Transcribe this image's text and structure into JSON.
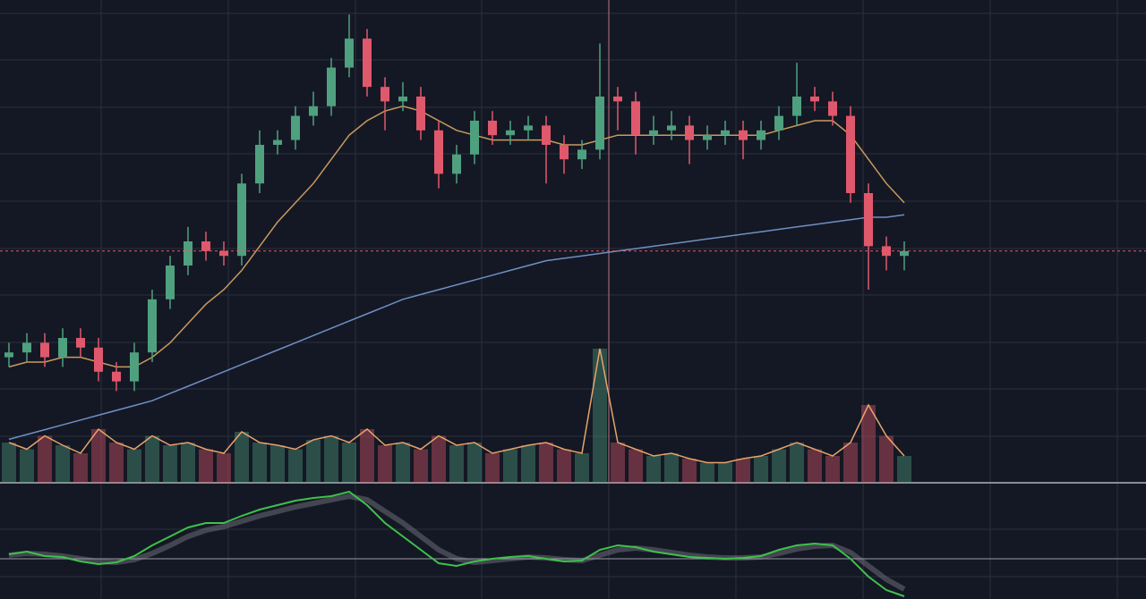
{
  "chart_data": {
    "type": "candlestick",
    "open": [
      26,
      27,
      29,
      26,
      30,
      28,
      23,
      21,
      27,
      38,
      45,
      50,
      48,
      47,
      62,
      70,
      71,
      76,
      78,
      86,
      92,
      82,
      79,
      80,
      73,
      64,
      68,
      75,
      72,
      73,
      74,
      70,
      67,
      69,
      80,
      79,
      72,
      73,
      74,
      71,
      72,
      73,
      71,
      73,
      76,
      80,
      79,
      76,
      60,
      49,
      47
    ],
    "high": [
      29,
      31,
      31,
      32,
      32,
      30,
      25,
      29,
      40,
      47,
      53,
      52,
      50,
      64,
      73,
      73,
      78,
      81,
      88,
      97,
      94,
      84,
      83,
      82,
      75,
      70,
      77,
      77,
      75,
      76,
      76,
      72,
      71,
      91,
      82,
      81,
      76,
      77,
      76,
      74,
      75,
      75,
      75,
      78,
      87,
      82,
      81,
      78,
      62,
      51,
      50
    ],
    "low": [
      24,
      25,
      24,
      24,
      26,
      21,
      19,
      19,
      25,
      36,
      43,
      46,
      45,
      45,
      60,
      68,
      69,
      74,
      76,
      84,
      80,
      73,
      77,
      71,
      61,
      62,
      66,
      70,
      70,
      71,
      62,
      64,
      65,
      67,
      73,
      68,
      70,
      71,
      66,
      69,
      70,
      67,
      69,
      71,
      74,
      77,
      74,
      58,
      40,
      44,
      44
    ],
    "close": [
      27,
      29,
      26,
      30,
      28,
      23,
      21,
      27,
      38,
      45,
      50,
      48,
      47,
      62,
      70,
      71,
      76,
      78,
      86,
      92,
      82,
      79,
      80,
      73,
      64,
      68,
      75,
      72,
      73,
      74,
      70,
      67,
      69,
      80,
      79,
      72,
      73,
      74,
      71,
      72,
      73,
      71,
      73,
      76,
      80,
      79,
      76,
      60,
      49,
      47,
      48
    ],
    "ylim": [
      0,
      100
    ],
    "up_color": "#4fa07f",
    "down_color": "#e0586c",
    "moving_averages": [
      {
        "color": "#6f8fc4",
        "values": [
          9,
          10,
          11,
          12,
          13,
          14,
          15,
          16,
          17,
          18.5,
          20,
          21.5,
          23,
          24.5,
          26,
          27.5,
          29,
          30.5,
          32,
          33.5,
          35,
          36.5,
          38,
          39,
          40,
          41,
          42,
          43,
          44,
          45,
          46,
          46.5,
          47,
          47.5,
          48,
          48.5,
          49,
          49.5,
          50,
          50.5,
          51,
          51.5,
          52,
          52.5,
          53,
          53.5,
          54,
          54.5,
          55,
          55,
          55.5
        ]
      },
      {
        "color": "#c99a5e",
        "values": [
          24,
          25,
          25,
          26,
          26,
          25,
          24,
          24,
          26,
          29,
          33,
          37,
          40,
          44,
          49,
          54,
          58,
          62,
          67,
          72,
          75,
          77,
          78,
          77,
          75,
          73,
          72,
          71,
          71,
          71,
          71,
          70,
          70,
          71,
          72,
          72,
          72,
          72,
          72,
          72,
          72,
          72,
          72,
          73,
          74,
          75,
          75,
          72,
          67,
          62,
          58
        ]
      }
    ],
    "volume": [
      30,
      25,
      35,
      28,
      22,
      40,
      30,
      25,
      35,
      28,
      30,
      25,
      22,
      38,
      30,
      28,
      25,
      32,
      35,
      30,
      40,
      28,
      30,
      25,
      35,
      28,
      30,
      22,
      25,
      28,
      30,
      25,
      22,
      100,
      30,
      25,
      20,
      22,
      18,
      15,
      15,
      18,
      20,
      25,
      30,
      25,
      20,
      30,
      58,
      35,
      20
    ],
    "volume_ylim": [
      0,
      100
    ],
    "macd": {
      "line_color": "#3fc14a",
      "signal_color": "#9a9aa6",
      "ylim": [
        -4.5,
        8
      ],
      "line": [
        0.5,
        0.8,
        0.3,
        0.2,
        -0.3,
        -0.6,
        -0.4,
        0.3,
        1.5,
        2.5,
        3.5,
        4,
        4,
        4.8,
        5.5,
        6,
        6.5,
        6.8,
        7,
        7.5,
        6,
        4,
        2.5,
        1,
        -0.5,
        -0.8,
        -0.3,
        0,
        0.2,
        0.3,
        0,
        -0.3,
        -0.2,
        1,
        1.5,
        1.3,
        0.8,
        0.5,
        0.2,
        0.1,
        0,
        0.1,
        0.3,
        1,
        1.5,
        1.7,
        1.5,
        0,
        -2,
        -3.5,
        -4.2
      ],
      "signal": [
        0.4,
        0.6,
        0.5,
        0.3,
        0,
        -0.3,
        -0.4,
        -0.1,
        0.6,
        1.5,
        2.5,
        3.2,
        3.6,
        4.2,
        4.8,
        5.3,
        5.8,
        6.2,
        6.6,
        7,
        6.6,
        5.3,
        4,
        2.5,
        1,
        0,
        -0.4,
        -0.2,
        0,
        0.2,
        0.1,
        -0.1,
        -0.2,
        0.4,
        1,
        1.2,
        1,
        0.7,
        0.4,
        0.2,
        0.1,
        0.1,
        0.2,
        0.6,
        1.1,
        1.4,
        1.5,
        0.7,
        -0.8,
        -2.3,
        -3.4
      ]
    }
  }
}
